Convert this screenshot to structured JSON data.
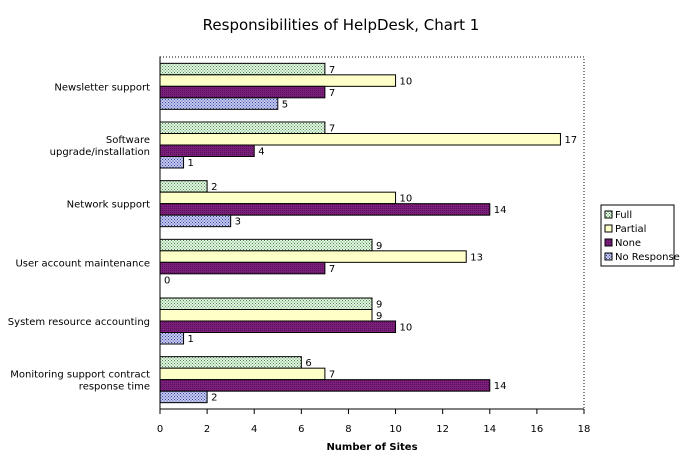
{
  "chart_data": {
    "type": "bar",
    "orientation": "horizontal",
    "title": "Responsibilities of HelpDesk, Chart 1",
    "xlabel": "Number of Sites",
    "ylabel": "",
    "xlim": [
      0,
      18
    ],
    "xticks": [
      "0",
      "2",
      "4",
      "6",
      "8",
      "10",
      "12",
      "14",
      "16",
      "18"
    ],
    "grid": false,
    "legend_position": "right",
    "categories": [
      [
        "Newsletter support"
      ],
      [
        "Software",
        "upgrade/installation"
      ],
      [
        "Network support"
      ],
      [
        "User account maintenance"
      ],
      [
        "System resource accounting"
      ],
      [
        "Monitoring support contract",
        "response time"
      ]
    ],
    "series": [
      {
        "name": "Full",
        "values": [
          7,
          7,
          2,
          9,
          9,
          6
        ],
        "color": "#c8ecc8"
      },
      {
        "name": "Partial",
        "values": [
          10,
          17,
          10,
          13,
          9,
          7
        ],
        "color": "#ffffc8"
      },
      {
        "name": "None",
        "values": [
          7,
          4,
          14,
          7,
          10,
          14
        ],
        "color": "#7a1f7a"
      },
      {
        "name": "No Response",
        "values": [
          5,
          1,
          3,
          0,
          1,
          2
        ],
        "color": "#9aa0d8"
      }
    ]
  }
}
